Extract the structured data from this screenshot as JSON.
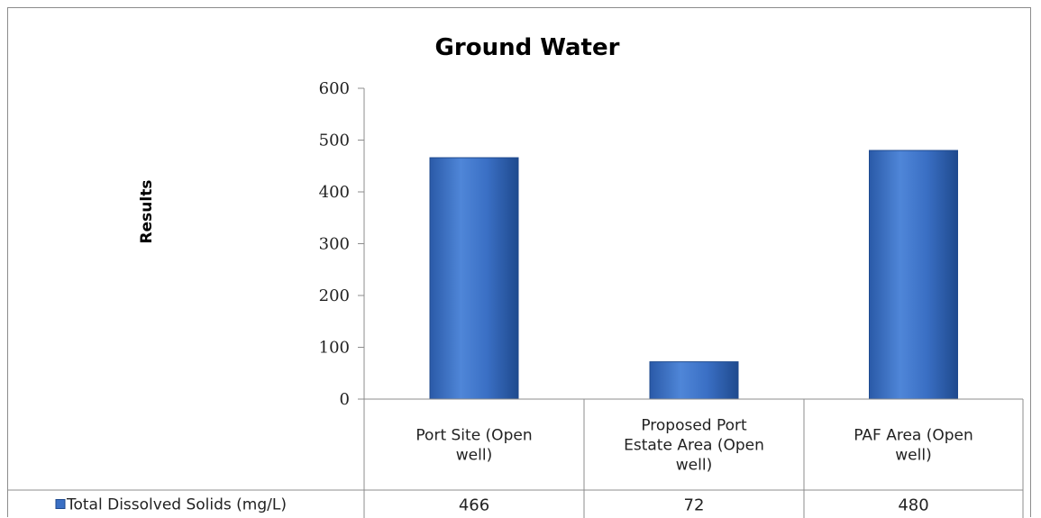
{
  "chart_data": {
    "type": "bar",
    "title": "Ground Water",
    "ylabel": "Results",
    "xlabel": "",
    "ylim": [
      0,
      600
    ],
    "yticks": [
      0,
      100,
      200,
      300,
      400,
      500,
      600
    ],
    "categories": [
      [
        "Port Site (Open",
        "well)"
      ],
      [
        "Proposed Port",
        "Estate Area (Open",
        "well)"
      ],
      [
        "PAF Area (Open",
        "well)"
      ]
    ],
    "series": [
      {
        "name": "Total Dissolved Solids (mg/L)",
        "values": [
          466,
          72,
          480
        ],
        "color": "#3a6fc4"
      }
    ],
    "data_table": true,
    "legend": "data-table"
  },
  "colors": {
    "bar_light": "#5b8fe0",
    "bar_mid": "#2f63b6",
    "bar_dark": "#1f4a8e",
    "border": "#8c8c8c"
  }
}
